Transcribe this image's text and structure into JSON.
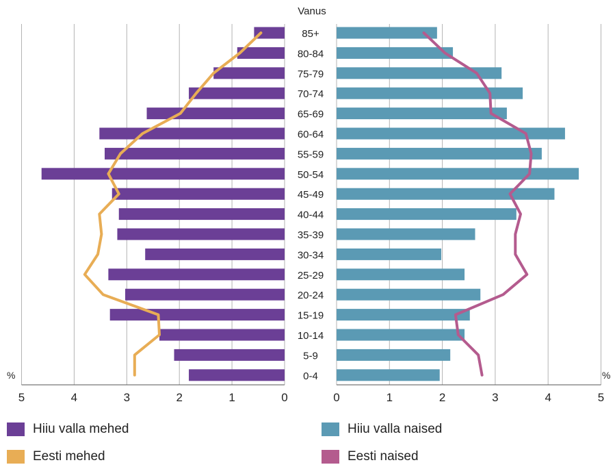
{
  "chart_data": {
    "type": "bar",
    "title": "Vanus",
    "unit_left": "%",
    "unit_right": "%",
    "categories": [
      "85+",
      "80-84",
      "75-79",
      "70-74",
      "65-69",
      "60-64",
      "55-59",
      "50-54",
      "45-49",
      "40-44",
      "35-39",
      "30-34",
      "25-29",
      "20-24",
      "15-19",
      "10-14",
      "5-9",
      "0-4"
    ],
    "xlim": [
      0,
      5
    ],
    "ticks_left": [
      "5",
      "4",
      "3",
      "2",
      "1",
      "0"
    ],
    "ticks_right": [
      "0",
      "1",
      "2",
      "3",
      "4",
      "5"
    ],
    "grid": true,
    "legend_position": "bottom",
    "series": [
      {
        "name": "Hiiu valla mehed",
        "kind": "bar",
        "side": "left",
        "color": "#6b3f96",
        "values": [
          0.58,
          0.9,
          1.35,
          1.82,
          2.62,
          3.52,
          3.42,
          4.62,
          3.28,
          3.15,
          3.18,
          2.65,
          3.35,
          3.03,
          3.32,
          2.38,
          2.1,
          1.82
        ]
      },
      {
        "name": "Hiiu valla naised",
        "kind": "bar",
        "side": "right",
        "color": "#5b9ab4",
        "values": [
          1.9,
          2.2,
          3.12,
          3.52,
          3.22,
          4.32,
          3.88,
          4.58,
          4.12,
          3.4,
          2.62,
          1.98,
          2.42,
          2.72,
          2.52,
          2.42,
          2.15,
          1.95
        ]
      },
      {
        "name": "Eesti mehed",
        "kind": "line",
        "side": "left",
        "color": "#e8ad55",
        "values": [
          0.45,
          0.85,
          1.35,
          1.68,
          1.98,
          2.7,
          3.12,
          3.35,
          3.15,
          3.52,
          3.48,
          3.55,
          3.8,
          3.45,
          2.4,
          2.38,
          2.85,
          2.85
        ]
      },
      {
        "name": "Eesti naised",
        "kind": "line",
        "side": "right",
        "color": "#b45b8e",
        "values": [
          1.65,
          2.05,
          2.65,
          2.9,
          2.92,
          3.58,
          3.68,
          3.65,
          3.28,
          3.48,
          3.38,
          3.38,
          3.6,
          3.15,
          2.25,
          2.3,
          2.68,
          2.75
        ]
      }
    ]
  }
}
